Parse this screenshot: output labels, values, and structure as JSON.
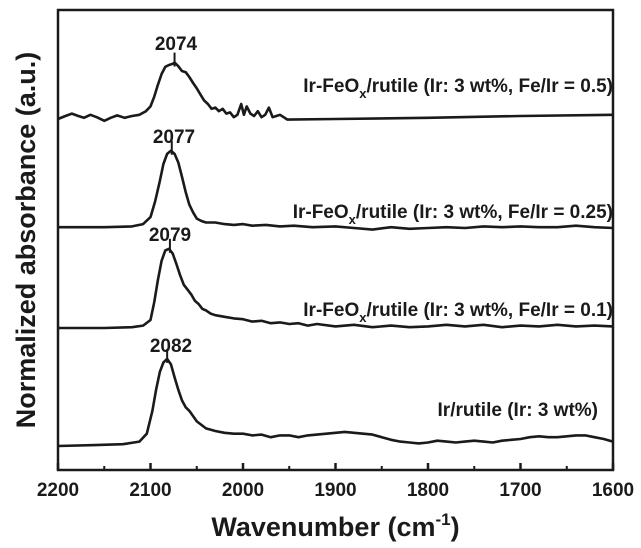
{
  "chart_data": {
    "type": "line",
    "xlabel": "Wavenumber (cm",
    "xlabel_sup": "-1",
    "xlabel_close": ")",
    "ylabel": "Normalized absorbance (a.u.)",
    "xlim": [
      2200,
      1600
    ],
    "x_reversed": true,
    "x_ticks": [
      "2200",
      "2100",
      "2000",
      "1900",
      "1800",
      "1700",
      "1600"
    ],
    "y_ticks_shown": false,
    "grid": false,
    "legend": "inline labels",
    "line_color": "#1a1a1a",
    "series": [
      {
        "id": "s1",
        "name_parts": [
          "Ir-FeO",
          "x",
          "/rutile (Ir: 3 wt%, Fe/Ir = 0.5)"
        ],
        "offset": 3.0,
        "peak_label": "2074",
        "peak_x": 2074,
        "points": [
          [
            2200,
            0.05
          ],
          [
            2192,
            0.1
          ],
          [
            2185,
            0.14
          ],
          [
            2178,
            0.1
          ],
          [
            2172,
            0.07
          ],
          [
            2165,
            0.12
          ],
          [
            2158,
            0.08
          ],
          [
            2150,
            0.02
          ],
          [
            2143,
            0.07
          ],
          [
            2136,
            0.11
          ],
          [
            2128,
            0.07
          ],
          [
            2120,
            0.1
          ],
          [
            2112,
            0.12
          ],
          [
            2105,
            0.18
          ],
          [
            2100,
            0.26
          ],
          [
            2096,
            0.42
          ],
          [
            2092,
            0.62
          ],
          [
            2088,
            0.8
          ],
          [
            2084,
            0.92
          ],
          [
            2080,
            0.95
          ],
          [
            2076,
            0.97
          ],
          [
            2074,
            0.99
          ],
          [
            2070,
            0.93
          ],
          [
            2066,
            0.85
          ],
          [
            2062,
            0.83
          ],
          [
            2058,
            0.75
          ],
          [
            2054,
            0.65
          ],
          [
            2050,
            0.56
          ],
          [
            2046,
            0.46
          ],
          [
            2042,
            0.36
          ],
          [
            2038,
            0.3
          ],
          [
            2034,
            0.22
          ],
          [
            2030,
            0.24
          ],
          [
            2026,
            0.18
          ],
          [
            2022,
            0.22
          ],
          [
            2018,
            0.14
          ],
          [
            2014,
            0.16
          ],
          [
            2010,
            0.08
          ],
          [
            2006,
            0.12
          ],
          [
            2002,
            0.3
          ],
          [
            1999,
            0.12
          ],
          [
            1996,
            0.26
          ],
          [
            1992,
            0.14
          ],
          [
            1988,
            0.1
          ],
          [
            1984,
            0.18
          ],
          [
            1980,
            0.08
          ],
          [
            1976,
            0.12
          ],
          [
            1972,
            0.24
          ],
          [
            1968,
            0.08
          ],
          [
            1964,
            0.1
          ],
          [
            1960,
            0.12
          ],
          [
            1956,
            0.08
          ],
          [
            1952,
            0.04
          ],
          [
            1900,
            0.05
          ],
          [
            1800,
            0.07
          ],
          [
            1700,
            0.1
          ],
          [
            1600,
            0.12
          ]
        ]
      },
      {
        "id": "s2",
        "name_parts": [
          "Ir-FeO",
          "x",
          "/rutile (Ir: 3 wt%, Fe/Ir = 0.25)"
        ],
        "offset": 2.0,
        "peak_label": "2077",
        "peak_x": 2077,
        "points": [
          [
            2200,
            0.01
          ],
          [
            2150,
            0.01
          ],
          [
            2120,
            0.02
          ],
          [
            2108,
            0.05
          ],
          [
            2100,
            0.14
          ],
          [
            2095,
            0.34
          ],
          [
            2090,
            0.6
          ],
          [
            2086,
            0.82
          ],
          [
            2082,
            0.95
          ],
          [
            2078,
            0.99
          ],
          [
            2074,
            0.95
          ],
          [
            2070,
            0.84
          ],
          [
            2066,
            0.66
          ],
          [
            2062,
            0.46
          ],
          [
            2058,
            0.3
          ],
          [
            2054,
            0.2
          ],
          [
            2050,
            0.12
          ],
          [
            2045,
            0.09
          ],
          [
            2040,
            0.07
          ],
          [
            2030,
            0.07
          ],
          [
            2020,
            0.05
          ],
          [
            2010,
            0.04
          ],
          [
            2000,
            0.05
          ],
          [
            1990,
            0.03
          ],
          [
            1975,
            0.04
          ],
          [
            1960,
            0.02
          ],
          [
            1945,
            0.03
          ],
          [
            1925,
            0.01
          ],
          [
            1900,
            0.02
          ],
          [
            1880,
            0.0
          ],
          [
            1860,
            -0.02
          ],
          [
            1840,
            0.01
          ],
          [
            1820,
            -0.01
          ],
          [
            1800,
            0.0
          ],
          [
            1780,
            0.01
          ],
          [
            1760,
            0.0
          ],
          [
            1740,
            0.02
          ],
          [
            1720,
            0.01
          ],
          [
            1700,
            0.02
          ],
          [
            1680,
            0.01
          ],
          [
            1660,
            0.01
          ],
          [
            1640,
            0.03
          ],
          [
            1620,
            0.01
          ],
          [
            1600,
            0.0
          ]
        ]
      },
      {
        "id": "s3",
        "name_parts": [
          "Ir-FeO",
          "x",
          "/rutile (Ir: 3 wt%, Fe/Ir = 0.1)"
        ],
        "offset": 1.0,
        "peak_label": "2079",
        "peak_x": 2079,
        "points": [
          [
            2200,
            0.0
          ],
          [
            2150,
            0.0
          ],
          [
            2120,
            0.01
          ],
          [
            2108,
            0.03
          ],
          [
            2100,
            0.1
          ],
          [
            2096,
            0.32
          ],
          [
            2092,
            0.6
          ],
          [
            2088,
            0.84
          ],
          [
            2084,
            0.97
          ],
          [
            2080,
            0.99
          ],
          [
            2076,
            0.93
          ],
          [
            2072,
            0.8
          ],
          [
            2068,
            0.66
          ],
          [
            2064,
            0.54
          ],
          [
            2060,
            0.48
          ],
          [
            2056,
            0.42
          ],
          [
            2052,
            0.34
          ],
          [
            2048,
            0.3
          ],
          [
            2044,
            0.24
          ],
          [
            2040,
            0.22
          ],
          [
            2035,
            0.18
          ],
          [
            2030,
            0.16
          ],
          [
            2020,
            0.14
          ],
          [
            2010,
            0.12
          ],
          [
            2000,
            0.11
          ],
          [
            1990,
            0.08
          ],
          [
            1980,
            0.09
          ],
          [
            1970,
            0.06
          ],
          [
            1960,
            0.07
          ],
          [
            1950,
            0.05
          ],
          [
            1940,
            0.06
          ],
          [
            1930,
            0.03
          ],
          [
            1920,
            0.05
          ],
          [
            1900,
            0.02
          ],
          [
            1880,
            0.04
          ],
          [
            1860,
            0.01
          ],
          [
            1840,
            0.03
          ],
          [
            1820,
            0.01
          ],
          [
            1800,
            0.02
          ],
          [
            1780,
            0.04
          ],
          [
            1760,
            0.02
          ],
          [
            1740,
            0.04
          ],
          [
            1720,
            0.01
          ],
          [
            1700,
            0.03
          ],
          [
            1680,
            0.02
          ],
          [
            1660,
            0.04
          ],
          [
            1640,
            0.02
          ],
          [
            1620,
            0.03
          ],
          [
            1600,
            0.02
          ]
        ]
      },
      {
        "id": "s4",
        "name_parts": [
          "Ir/rutile (Ir: 3 wt%)",
          "",
          ""
        ],
        "offset": 0.0,
        "peak_label": "2082",
        "peak_x": 2082,
        "points": [
          [
            2200,
            0.0
          ],
          [
            2160,
            0.01
          ],
          [
            2130,
            0.02
          ],
          [
            2112,
            0.05
          ],
          [
            2104,
            0.14
          ],
          [
            2098,
            0.4
          ],
          [
            2094,
            0.64
          ],
          [
            2090,
            0.84
          ],
          [
            2086,
            0.95
          ],
          [
            2082,
            0.99
          ],
          [
            2078,
            0.93
          ],
          [
            2074,
            0.78
          ],
          [
            2070,
            0.64
          ],
          [
            2066,
            0.52
          ],
          [
            2062,
            0.44
          ],
          [
            2058,
            0.4
          ],
          [
            2054,
            0.34
          ],
          [
            2050,
            0.28
          ],
          [
            2045,
            0.24
          ],
          [
            2040,
            0.2
          ],
          [
            2030,
            0.17
          ],
          [
            2020,
            0.15
          ],
          [
            2010,
            0.14
          ],
          [
            2000,
            0.14
          ],
          [
            1990,
            0.12
          ],
          [
            1980,
            0.13
          ],
          [
            1970,
            0.1
          ],
          [
            1960,
            0.12
          ],
          [
            1950,
            0.12
          ],
          [
            1940,
            0.1
          ],
          [
            1930,
            0.12
          ],
          [
            1920,
            0.13
          ],
          [
            1910,
            0.14
          ],
          [
            1900,
            0.15
          ],
          [
            1890,
            0.16
          ],
          [
            1880,
            0.15
          ],
          [
            1870,
            0.14
          ],
          [
            1860,
            0.13
          ],
          [
            1850,
            0.1
          ],
          [
            1840,
            0.07
          ],
          [
            1830,
            0.05
          ],
          [
            1820,
            0.04
          ],
          [
            1810,
            0.03
          ],
          [
            1800,
            0.04
          ],
          [
            1790,
            0.06
          ],
          [
            1780,
            0.05
          ],
          [
            1770,
            0.04
          ],
          [
            1760,
            0.05
          ],
          [
            1750,
            0.06
          ],
          [
            1740,
            0.05
          ],
          [
            1730,
            0.04
          ],
          [
            1720,
            0.06
          ],
          [
            1710,
            0.07
          ],
          [
            1700,
            0.08
          ],
          [
            1690,
            0.1
          ],
          [
            1680,
            0.11
          ],
          [
            1670,
            0.1
          ],
          [
            1660,
            0.1
          ],
          [
            1650,
            0.11
          ],
          [
            1640,
            0.12
          ],
          [
            1630,
            0.12
          ],
          [
            1620,
            0.1
          ],
          [
            1610,
            0.08
          ],
          [
            1600,
            0.05
          ]
        ]
      }
    ]
  }
}
